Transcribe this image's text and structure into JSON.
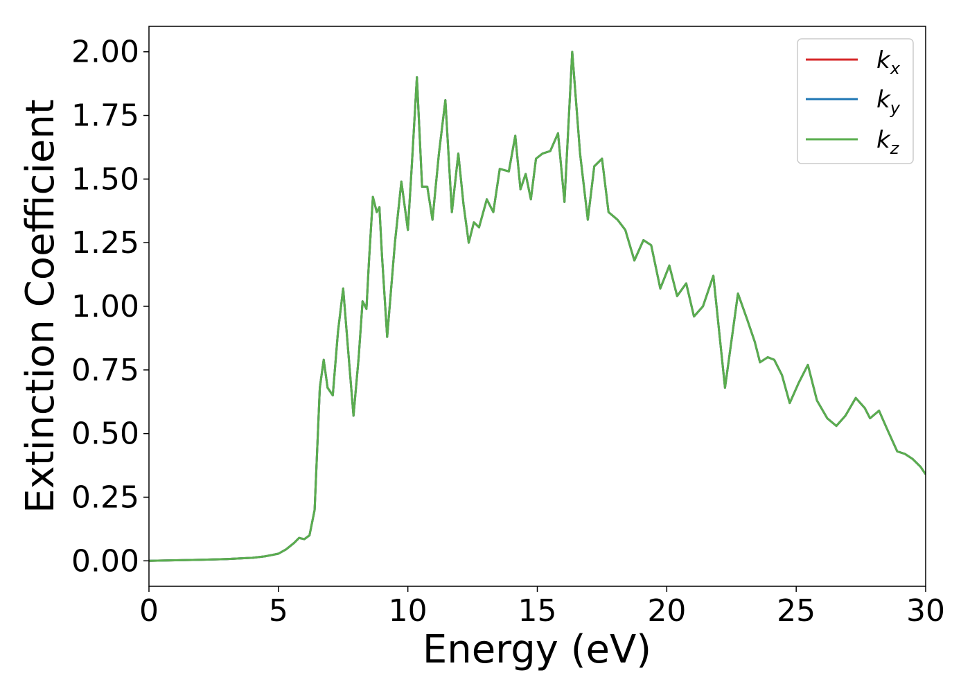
{
  "chart_data": {
    "type": "line",
    "xlabel": "Energy (eV)",
    "ylabel": "Extinction Coefficient",
    "xlim": [
      0,
      30
    ],
    "ylim": [
      -0.1,
      2.1
    ],
    "xticks": [
      0,
      5,
      10,
      15,
      20,
      25,
      30
    ],
    "xtick_labels": [
      "0",
      "5",
      "10",
      "15",
      "20",
      "25",
      "30"
    ],
    "yticks": [
      0.0,
      0.25,
      0.5,
      0.75,
      1.0,
      1.25,
      1.5,
      1.75,
      2.0
    ],
    "ytick_labels": [
      "0.00",
      "0.25",
      "0.50",
      "0.75",
      "1.00",
      "1.25",
      "1.50",
      "1.75",
      "2.00"
    ],
    "grid": false,
    "legend_position": "top-right",
    "series": [
      {
        "name": "k",
        "subscript": "x",
        "color": "#d62728",
        "x": [
          0,
          1,
          2,
          3,
          4,
          4.5,
          5,
          5.3,
          5.6,
          5.8,
          6.0,
          6.2,
          6.4,
          6.6,
          6.75,
          6.9,
          7.1,
          7.3,
          7.5,
          7.7,
          7.9,
          8.1,
          8.25,
          8.4,
          8.5,
          8.65,
          8.8,
          8.9,
          9.0,
          9.2,
          9.5,
          9.75,
          10.0,
          10.15,
          10.35,
          10.55,
          10.75,
          10.95,
          11.2,
          11.45,
          11.7,
          11.95,
          12.15,
          12.35,
          12.55,
          12.75,
          13.05,
          13.3,
          13.55,
          13.9,
          14.15,
          14.35,
          14.55,
          14.75,
          14.95,
          15.2,
          15.5,
          15.8,
          16.05,
          16.35,
          16.65,
          16.95,
          17.2,
          17.5,
          17.75,
          18.1,
          18.4,
          18.75,
          19.1,
          19.4,
          19.75,
          20.1,
          20.4,
          20.75,
          21.05,
          21.4,
          21.8,
          22.25,
          22.75,
          23.1,
          23.4,
          23.6,
          23.9,
          24.15,
          24.45,
          24.75,
          25.1,
          25.45,
          25.8,
          26.2,
          26.55,
          26.9,
          27.3,
          27.65,
          27.85,
          28.2,
          28.5,
          28.9,
          29.2,
          29.5,
          29.8,
          30.0
        ],
        "y": [
          0.0,
          0.002,
          0.004,
          0.007,
          0.012,
          0.018,
          0.028,
          0.045,
          0.07,
          0.09,
          0.085,
          0.1,
          0.2,
          0.68,
          0.79,
          0.68,
          0.65,
          0.9,
          1.07,
          0.82,
          0.57,
          0.8,
          1.02,
          0.99,
          1.18,
          1.43,
          1.37,
          1.39,
          1.2,
          0.88,
          1.25,
          1.49,
          1.3,
          1.55,
          1.9,
          1.47,
          1.47,
          1.34,
          1.6,
          1.81,
          1.37,
          1.6,
          1.4,
          1.25,
          1.33,
          1.31,
          1.42,
          1.37,
          1.54,
          1.53,
          1.67,
          1.46,
          1.52,
          1.42,
          1.58,
          1.6,
          1.61,
          1.68,
          1.41,
          2.0,
          1.6,
          1.34,
          1.55,
          1.58,
          1.37,
          1.34,
          1.3,
          1.18,
          1.26,
          1.24,
          1.07,
          1.16,
          1.04,
          1.09,
          0.96,
          1.0,
          1.12,
          0.68,
          1.05,
          0.95,
          0.86,
          0.78,
          0.8,
          0.79,
          0.73,
          0.62,
          0.7,
          0.77,
          0.63,
          0.56,
          0.53,
          0.57,
          0.64,
          0.6,
          0.56,
          0.59,
          0.52,
          0.43,
          0.42,
          0.4,
          0.37,
          0.34
        ]
      },
      {
        "name": "k",
        "subscript": "y",
        "color": "#1f77b4",
        "x": [
          0,
          1,
          2,
          3,
          4,
          4.5,
          5,
          5.3,
          5.6,
          5.8,
          6.0,
          6.2,
          6.4,
          6.6,
          6.75,
          6.9,
          7.1,
          7.3,
          7.5,
          7.7,
          7.9,
          8.1,
          8.25,
          8.4,
          8.5,
          8.65,
          8.8,
          8.9,
          9.0,
          9.2,
          9.5,
          9.75,
          10.0,
          10.15,
          10.35,
          10.55,
          10.75,
          10.95,
          11.2,
          11.45,
          11.7,
          11.95,
          12.15,
          12.35,
          12.55,
          12.75,
          13.05,
          13.3,
          13.55,
          13.9,
          14.15,
          14.35,
          14.55,
          14.75,
          14.95,
          15.2,
          15.5,
          15.8,
          16.05,
          16.35,
          16.65,
          16.95,
          17.2,
          17.5,
          17.75,
          18.1,
          18.4,
          18.75,
          19.1,
          19.4,
          19.75,
          20.1,
          20.4,
          20.75,
          21.05,
          21.4,
          21.8,
          22.25,
          22.75,
          23.1,
          23.4,
          23.6,
          23.9,
          24.15,
          24.45,
          24.75,
          25.1,
          25.45,
          25.8,
          26.2,
          26.55,
          26.9,
          27.3,
          27.65,
          27.85,
          28.2,
          28.5,
          28.9,
          29.2,
          29.5,
          29.8,
          30.0
        ],
        "y": [
          0.0,
          0.002,
          0.004,
          0.007,
          0.012,
          0.018,
          0.028,
          0.045,
          0.07,
          0.09,
          0.085,
          0.1,
          0.2,
          0.68,
          0.79,
          0.68,
          0.65,
          0.9,
          1.07,
          0.82,
          0.57,
          0.8,
          1.02,
          0.99,
          1.18,
          1.43,
          1.37,
          1.39,
          1.2,
          0.88,
          1.25,
          1.49,
          1.3,
          1.55,
          1.9,
          1.47,
          1.47,
          1.34,
          1.6,
          1.81,
          1.37,
          1.6,
          1.4,
          1.25,
          1.33,
          1.31,
          1.42,
          1.37,
          1.54,
          1.53,
          1.67,
          1.46,
          1.52,
          1.42,
          1.58,
          1.6,
          1.61,
          1.68,
          1.41,
          2.0,
          1.6,
          1.34,
          1.55,
          1.58,
          1.37,
          1.34,
          1.3,
          1.18,
          1.26,
          1.24,
          1.07,
          1.16,
          1.04,
          1.09,
          0.96,
          1.0,
          1.12,
          0.68,
          1.05,
          0.95,
          0.86,
          0.78,
          0.8,
          0.79,
          0.73,
          0.62,
          0.7,
          0.77,
          0.63,
          0.56,
          0.53,
          0.57,
          0.64,
          0.6,
          0.56,
          0.59,
          0.52,
          0.43,
          0.42,
          0.4,
          0.37,
          0.34
        ]
      },
      {
        "name": "k",
        "subscript": "z",
        "color": "#5aad4e",
        "x": [
          0,
          1,
          2,
          3,
          4,
          4.5,
          5,
          5.3,
          5.6,
          5.8,
          6.0,
          6.2,
          6.4,
          6.6,
          6.75,
          6.9,
          7.1,
          7.3,
          7.5,
          7.7,
          7.9,
          8.1,
          8.25,
          8.4,
          8.5,
          8.65,
          8.8,
          8.9,
          9.0,
          9.2,
          9.5,
          9.75,
          10.0,
          10.15,
          10.35,
          10.55,
          10.75,
          10.95,
          11.2,
          11.45,
          11.7,
          11.95,
          12.15,
          12.35,
          12.55,
          12.75,
          13.05,
          13.3,
          13.55,
          13.9,
          14.15,
          14.35,
          14.55,
          14.75,
          14.95,
          15.2,
          15.5,
          15.8,
          16.05,
          16.35,
          16.65,
          16.95,
          17.2,
          17.5,
          17.75,
          18.1,
          18.4,
          18.75,
          19.1,
          19.4,
          19.75,
          20.1,
          20.4,
          20.75,
          21.05,
          21.4,
          21.8,
          22.25,
          22.75,
          23.1,
          23.4,
          23.6,
          23.9,
          24.15,
          24.45,
          24.75,
          25.1,
          25.45,
          25.8,
          26.2,
          26.55,
          26.9,
          27.3,
          27.65,
          27.85,
          28.2,
          28.5,
          28.9,
          29.2,
          29.5,
          29.8,
          30.0
        ],
        "y": [
          0.0,
          0.002,
          0.004,
          0.007,
          0.012,
          0.018,
          0.028,
          0.045,
          0.07,
          0.09,
          0.085,
          0.1,
          0.2,
          0.68,
          0.79,
          0.68,
          0.65,
          0.9,
          1.07,
          0.82,
          0.57,
          0.8,
          1.02,
          0.99,
          1.18,
          1.43,
          1.37,
          1.39,
          1.2,
          0.88,
          1.25,
          1.49,
          1.3,
          1.55,
          1.9,
          1.47,
          1.47,
          1.34,
          1.6,
          1.81,
          1.37,
          1.6,
          1.4,
          1.25,
          1.33,
          1.31,
          1.42,
          1.37,
          1.54,
          1.53,
          1.67,
          1.46,
          1.52,
          1.42,
          1.58,
          1.6,
          1.61,
          1.68,
          1.41,
          2.0,
          1.6,
          1.34,
          1.55,
          1.58,
          1.37,
          1.34,
          1.3,
          1.18,
          1.26,
          1.24,
          1.07,
          1.16,
          1.04,
          1.09,
          0.96,
          1.0,
          1.12,
          0.68,
          1.05,
          0.95,
          0.86,
          0.78,
          0.8,
          0.79,
          0.73,
          0.62,
          0.7,
          0.77,
          0.63,
          0.56,
          0.53,
          0.57,
          0.64,
          0.6,
          0.56,
          0.59,
          0.52,
          0.43,
          0.42,
          0.4,
          0.37,
          0.34
        ]
      }
    ]
  }
}
